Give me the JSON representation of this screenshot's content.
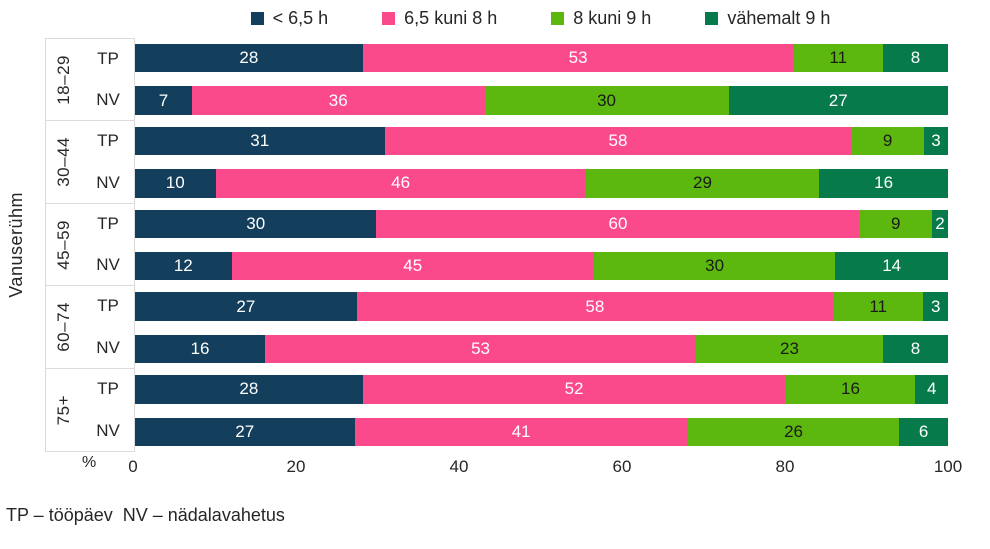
{
  "legend": [
    {
      "label": "< 6,5 h",
      "color": "#133F5C"
    },
    {
      "label": "6,5 kuni 8 h",
      "color": "#FA4A8C"
    },
    {
      "label": "8 kuni 9 h",
      "color": "#5CB80E"
    },
    {
      "label": "vähemalt 9 h",
      "color": "#077A4C"
    }
  ],
  "chart_data": {
    "type": "bar",
    "orientation": "horizontal",
    "stacked": true,
    "ylabel": "Vanuserühm",
    "xlabel": "%",
    "xlim": [
      0,
      100
    ],
    "xticks": [
      0,
      20,
      40,
      60,
      80,
      100
    ],
    "series_names": [
      "< 6,5 h",
      "6,5 kuni 8 h",
      "8 kuni 9 h",
      "vähemalt 9 h"
    ],
    "colors": [
      "#133F5C",
      "#FA4A8C",
      "#5CB80E",
      "#077A4C"
    ],
    "label_text_colors": [
      "#FFFFFF",
      "#FFFFFF",
      "#1A1A1A",
      "#FFFFFF"
    ],
    "groups": [
      {
        "age": "18–29",
        "rows": [
          {
            "label": "TP",
            "values": [
              28,
              53,
              11,
              8
            ]
          },
          {
            "label": "NV",
            "values": [
              7,
              36,
              30,
              27
            ]
          }
        ]
      },
      {
        "age": "30–44",
        "rows": [
          {
            "label": "TP",
            "values": [
              31,
              58,
              9,
              3
            ]
          },
          {
            "label": "NV",
            "values": [
              10,
              46,
              29,
              16
            ]
          }
        ]
      },
      {
        "age": "45–59",
        "rows": [
          {
            "label": "TP",
            "values": [
              30,
              60,
              9,
              2
            ]
          },
          {
            "label": "NV",
            "values": [
              12,
              45,
              30,
              14
            ]
          }
        ]
      },
      {
        "age": "60–74",
        "rows": [
          {
            "label": "TP",
            "values": [
              27,
              58,
              11,
              3
            ]
          },
          {
            "label": "NV",
            "values": [
              16,
              53,
              23,
              8
            ]
          }
        ]
      },
      {
        "age": "75+",
        "rows": [
          {
            "label": "TP",
            "values": [
              28,
              52,
              16,
              4
            ]
          },
          {
            "label": "NV",
            "values": [
              27,
              41,
              26,
              6
            ]
          }
        ]
      }
    ]
  },
  "footnote": "TP – tööpäev  NV – nädalavahetus"
}
